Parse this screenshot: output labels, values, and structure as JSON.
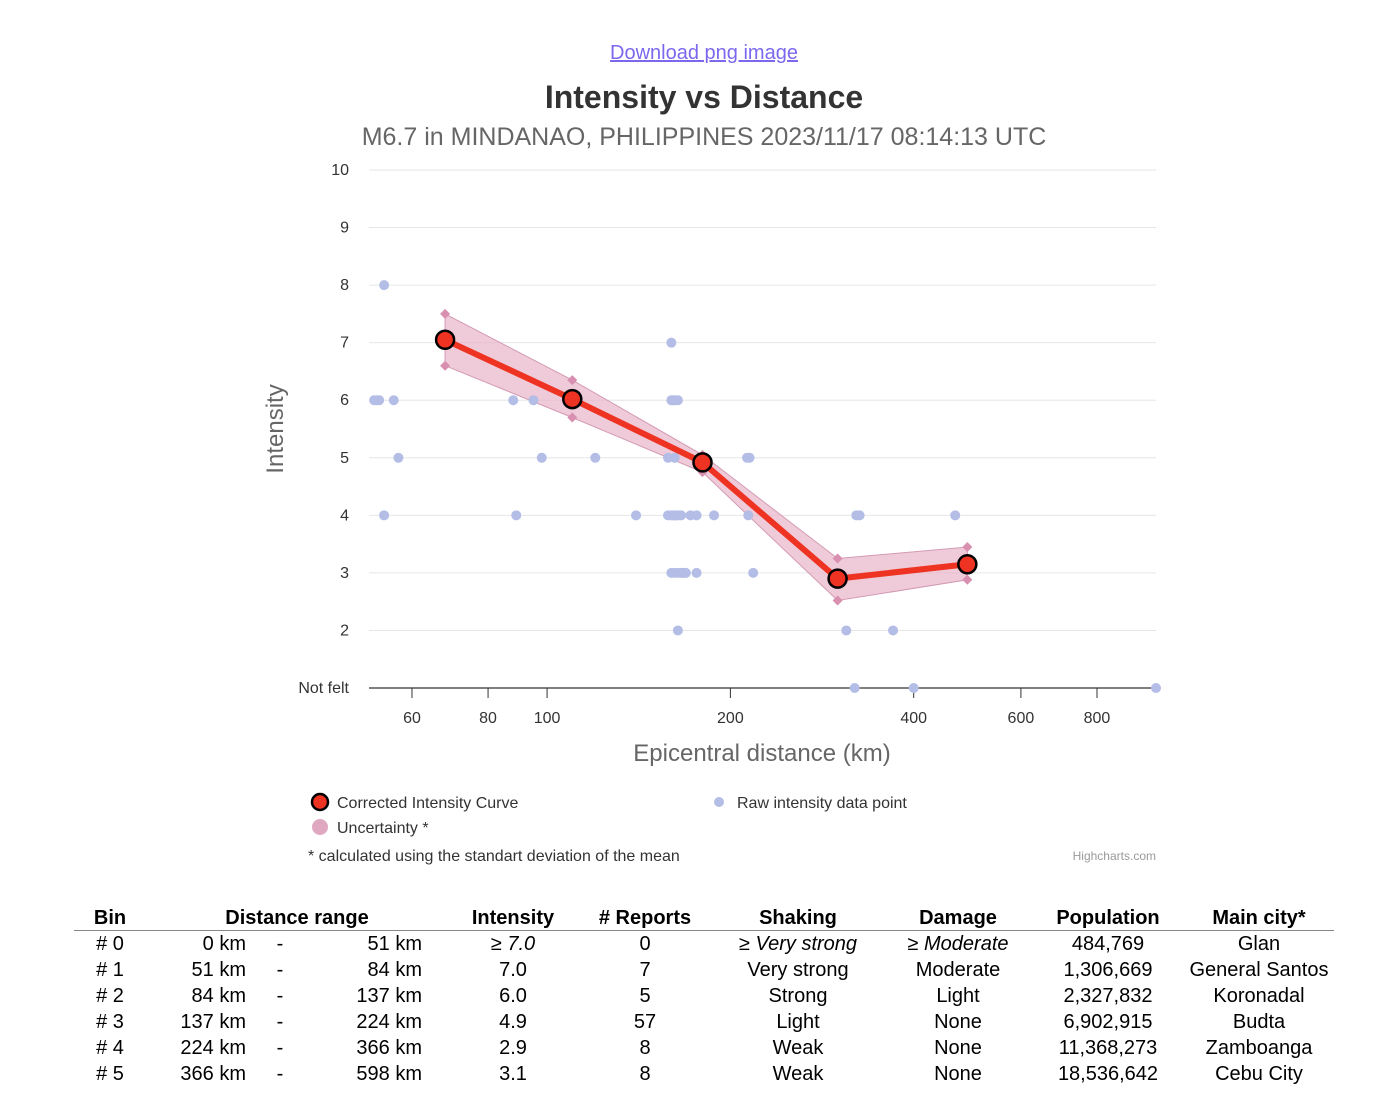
{
  "download_link": "Download png image",
  "credit": "Highcharts.com",
  "chart_data": {
    "type": "line",
    "title": "Intensity vs Distance",
    "subtitle": "M6.7 in MINDANAO, PHILIPPINES 2023/11/17 08:14:13 UTC",
    "xlabel": "Epicentral distance (km)",
    "ylabel": "Intensity",
    "xscale": "log",
    "xlim": [
      51,
      1000
    ],
    "ylim": [
      1,
      10
    ],
    "xticks": [
      {
        "value": 60,
        "label": "60"
      },
      {
        "value": 80,
        "label": "80"
      },
      {
        "value": 100,
        "label": "100"
      },
      {
        "value": 200,
        "label": "200"
      },
      {
        "value": 400,
        "label": "400"
      },
      {
        "value": 600,
        "label": "600"
      },
      {
        "value": 800,
        "label": "800"
      }
    ],
    "yticks": [
      {
        "value": 1,
        "label": "Not felt"
      },
      {
        "value": 2,
        "label": "2"
      },
      {
        "value": 3,
        "label": "3"
      },
      {
        "value": 4,
        "label": "4"
      },
      {
        "value": 5,
        "label": "5"
      },
      {
        "value": 6,
        "label": "6"
      },
      {
        "value": 7,
        "label": "7"
      },
      {
        "value": 8,
        "label": "8"
      },
      {
        "value": 9,
        "label": "9"
      },
      {
        "value": 10,
        "label": "10"
      }
    ],
    "series": [
      {
        "name": "Corrected Intensity Curve",
        "color": "#ee3322",
        "points": [
          [
            68,
            7.05
          ],
          [
            110,
            6.02
          ],
          [
            180,
            4.92
          ],
          [
            300,
            2.9
          ],
          [
            490,
            3.15
          ]
        ]
      },
      {
        "name": "Uncertainty *",
        "color": "#e0a8c0",
        "ranges": [
          [
            68,
            6.6,
            7.5
          ],
          [
            110,
            5.7,
            6.35
          ],
          [
            180,
            4.75,
            5.05
          ],
          [
            300,
            2.52,
            3.25
          ],
          [
            490,
            2.88,
            3.45
          ]
        ]
      },
      {
        "name": "Raw intensity data point",
        "color": "#b3bde6",
        "points": [
          [
            52,
            6
          ],
          [
            52.5,
            6
          ],
          [
            53,
            6
          ],
          [
            54,
            8
          ],
          [
            54,
            4
          ],
          [
            56,
            6
          ],
          [
            57,
            5
          ],
          [
            88,
            6
          ],
          [
            89,
            4
          ],
          [
            95,
            6
          ],
          [
            98,
            5
          ],
          [
            120,
            5
          ],
          [
            140,
            4
          ],
          [
            160,
            7
          ],
          [
            160,
            6
          ],
          [
            161,
            6
          ],
          [
            162,
            6
          ],
          [
            164,
            6
          ],
          [
            158,
            5
          ],
          [
            162,
            5
          ],
          [
            158,
            4
          ],
          [
            160,
            4
          ],
          [
            161,
            4
          ],
          [
            162,
            4
          ],
          [
            163,
            4
          ],
          [
            164,
            4
          ],
          [
            166,
            4
          ],
          [
            172,
            4
          ],
          [
            176,
            4
          ],
          [
            188,
            4
          ],
          [
            160,
            3
          ],
          [
            162,
            3
          ],
          [
            164,
            3
          ],
          [
            166,
            3
          ],
          [
            167,
            3
          ],
          [
            168,
            3
          ],
          [
            169,
            3
          ],
          [
            176,
            3
          ],
          [
            164,
            2
          ],
          [
            213,
            5
          ],
          [
            215,
            5
          ],
          [
            214,
            4
          ],
          [
            218,
            3
          ],
          [
            310,
            2
          ],
          [
            320,
            1
          ],
          [
            322,
            4
          ],
          [
            326,
            4
          ],
          [
            370,
            2
          ],
          [
            400,
            1
          ],
          [
            468,
            4
          ],
          [
            1000,
            1
          ]
        ]
      }
    ],
    "legend": {
      "placement": "bottom",
      "note": "* calculated using the standart deviation of the mean"
    }
  },
  "bins_table": {
    "headers": {
      "bin": "Bin",
      "distance": "Distance range",
      "intensity": "Intensity",
      "reports": "# Reports",
      "shaking": "Shaking",
      "damage": "Damage",
      "population": "Population",
      "city": "Main city*"
    },
    "rows": [
      {
        "bin": "# 0",
        "from": "0 km",
        "sep": "-",
        "to": "51 km",
        "intensity": "≥ 7.0",
        "reports": "0",
        "shaking": "≥ Very strong",
        "damage": "≥ Moderate",
        "population": "484,769",
        "city": "Glan"
      },
      {
        "bin": "# 1",
        "from": "51 km",
        "sep": "-",
        "to": "84 km",
        "intensity": "7.0",
        "reports": "7",
        "shaking": "Very strong",
        "damage": "Moderate",
        "population": "1,306,669",
        "city": "General Santos"
      },
      {
        "bin": "# 2",
        "from": "84 km",
        "sep": "-",
        "to": "137 km",
        "intensity": "6.0",
        "reports": "5",
        "shaking": "Strong",
        "damage": "Light",
        "population": "2,327,832",
        "city": "Koronadal"
      },
      {
        "bin": "# 3",
        "from": "137 km",
        "sep": "-",
        "to": "224 km",
        "intensity": "4.9",
        "reports": "57",
        "shaking": "Light",
        "damage": "None",
        "population": "6,902,915",
        "city": "Budta"
      },
      {
        "bin": "# 4",
        "from": "224 km",
        "sep": "-",
        "to": "366 km",
        "intensity": "2.9",
        "reports": "8",
        "shaking": "Weak",
        "damage": "None",
        "population": "11,368,273",
        "city": "Zamboanga"
      },
      {
        "bin": "# 5",
        "from": "366 km",
        "sep": "-",
        "to": "598 km",
        "intensity": "3.1",
        "reports": "8",
        "shaking": "Weak",
        "damage": "None",
        "population": "18,536,642",
        "city": "Cebu City"
      }
    ]
  }
}
